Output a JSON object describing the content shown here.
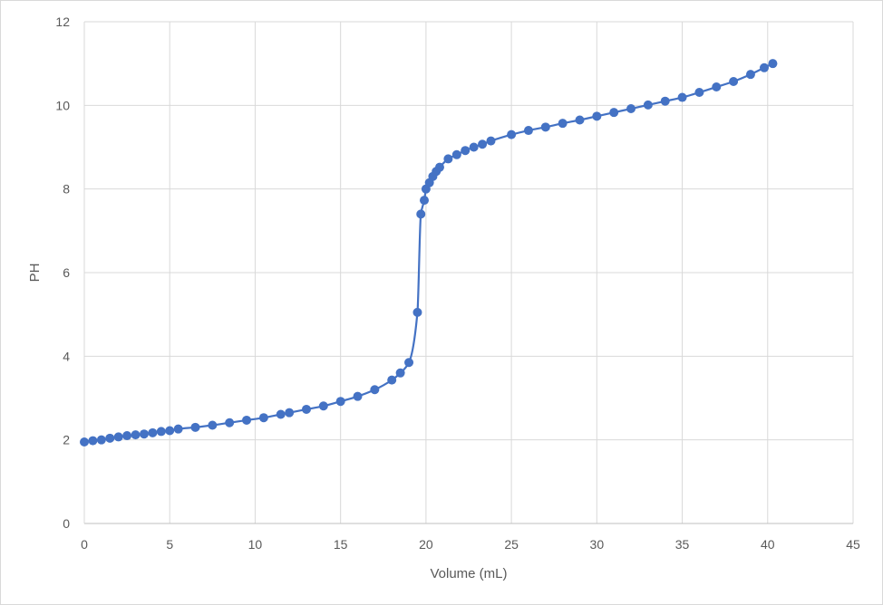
{
  "chart_data": {
    "type": "scatter",
    "title": "",
    "xlabel": "Volume (mL)",
    "ylabel": "PH",
    "xlim": [
      0,
      45
    ],
    "ylim": [
      0,
      12
    ],
    "x_ticks": [
      0,
      5,
      10,
      15,
      20,
      25,
      30,
      35,
      40,
      45
    ],
    "y_ticks": [
      0,
      2,
      4,
      6,
      8,
      10,
      12
    ],
    "grid": true,
    "legend": "none",
    "line": "smooth",
    "color": "#4472c4",
    "series": [
      {
        "points": [
          [
            0,
            1.95
          ],
          [
            0.5,
            1.98
          ],
          [
            1.0,
            2.0
          ],
          [
            1.5,
            2.04
          ],
          [
            2.0,
            2.07
          ],
          [
            2.5,
            2.1
          ],
          [
            3.0,
            2.12
          ],
          [
            3.5,
            2.14
          ],
          [
            4.0,
            2.17
          ],
          [
            4.5,
            2.2
          ],
          [
            5.0,
            2.22
          ],
          [
            5.5,
            2.26
          ],
          [
            6.5,
            2.3
          ],
          [
            7.5,
            2.35
          ],
          [
            8.5,
            2.41
          ],
          [
            9.5,
            2.47
          ],
          [
            10.5,
            2.53
          ],
          [
            11.5,
            2.61
          ],
          [
            12.0,
            2.65
          ],
          [
            13.0,
            2.73
          ],
          [
            14.0,
            2.81
          ],
          [
            15.0,
            2.92
          ],
          [
            16.0,
            3.04
          ],
          [
            17.0,
            3.2
          ],
          [
            18.0,
            3.43
          ],
          [
            18.5,
            3.6
          ],
          [
            19.0,
            3.85
          ],
          [
            19.5,
            5.05
          ],
          [
            19.7,
            7.4
          ],
          [
            19.9,
            7.73
          ],
          [
            20.0,
            8.0
          ],
          [
            20.2,
            8.15
          ],
          [
            20.4,
            8.3
          ],
          [
            20.6,
            8.42
          ],
          [
            20.8,
            8.52
          ],
          [
            21.3,
            8.72
          ],
          [
            21.8,
            8.82
          ],
          [
            22.3,
            8.92
          ],
          [
            22.8,
            9.0
          ],
          [
            23.3,
            9.07
          ],
          [
            23.8,
            9.15
          ],
          [
            25.0,
            9.3
          ],
          [
            26.0,
            9.4
          ],
          [
            27.0,
            9.48
          ],
          [
            28.0,
            9.57
          ],
          [
            29.0,
            9.65
          ],
          [
            30.0,
            9.74
          ],
          [
            31.0,
            9.83
          ],
          [
            32.0,
            9.92
          ],
          [
            33.0,
            10.01
          ],
          [
            34.0,
            10.1
          ],
          [
            35.0,
            10.19
          ],
          [
            36.0,
            10.31
          ],
          [
            37.0,
            10.44
          ],
          [
            38.0,
            10.57
          ],
          [
            39.0,
            10.74
          ],
          [
            39.8,
            10.9
          ],
          [
            40.3,
            11.0
          ]
        ]
      }
    ]
  }
}
